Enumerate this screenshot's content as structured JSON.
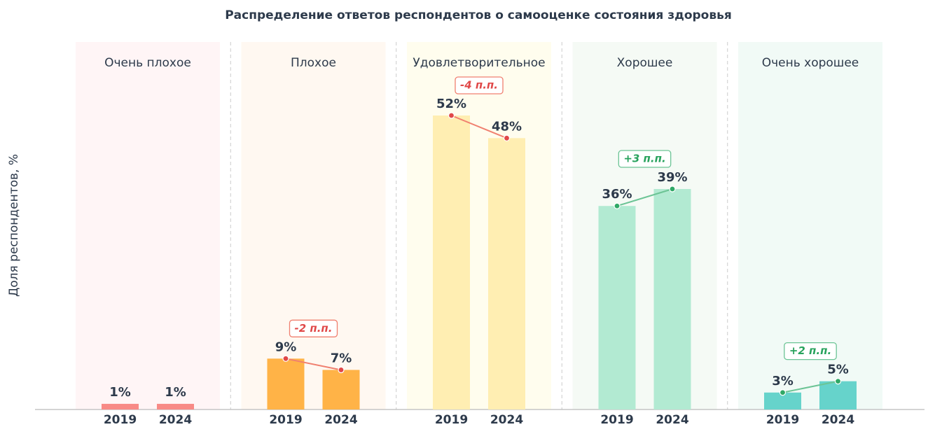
{
  "chart_data": {
    "type": "bar",
    "title": "Распределение ответов респондентов о самооценке состояния здоровья",
    "y_label": "Доля респондентов, %",
    "categories": [
      "Очень плохое",
      "Плохое",
      "Удовлетворительное",
      "Хорошее",
      "Очень хорошее"
    ],
    "colors": [
      "#f88a86",
      "#ffb347",
      "#ffeeb2",
      "#b2ead2",
      "#66d3cb"
    ],
    "band_colors": [
      "#fff5f6",
      "#fff8f1",
      "#fffdee",
      "#f5faf5",
      "#f1faf6"
    ],
    "series": [
      {
        "name": "2019",
        "values": [
          1,
          9,
          52,
          36,
          3
        ],
        "value_labels": [
          "1%",
          "9%",
          "52%",
          "36%",
          "3%"
        ]
      },
      {
        "name": "2024",
        "values": [
          1,
          7,
          48,
          39,
          5
        ],
        "value_labels": [
          "1%",
          "7%",
          "48%",
          "39%",
          "5%"
        ]
      }
    ],
    "change_labels": [
      null,
      "-2 п.п.",
      "-4 п.п.",
      "+3 п.п.",
      "+2 п.п."
    ],
    "ylim": [
      0,
      65
    ]
  }
}
